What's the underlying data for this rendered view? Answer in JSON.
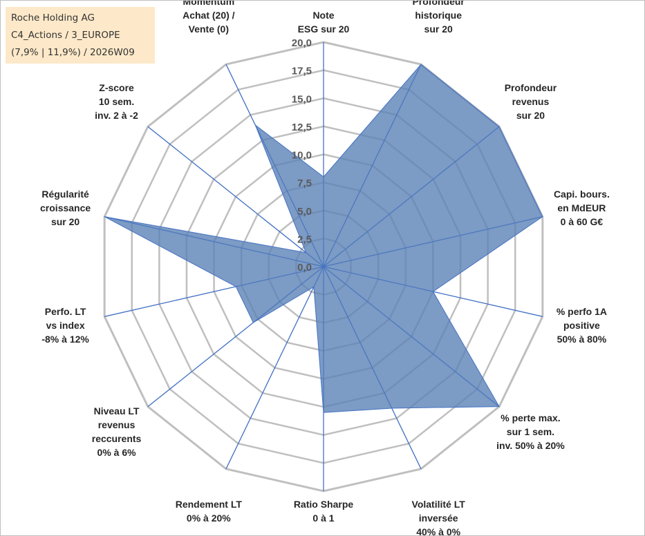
{
  "info_box": {
    "company": "Roche Holding AG",
    "category": "C4_Actions / 3_EUROPE",
    "period": "(7,9% | 11,9%) / 2026W09"
  },
  "colors": {
    "fill": "#5b82b6",
    "stroke": "#4472c4",
    "grid": "#bfbfbf",
    "spoke": "#4472c4",
    "info_bg": "#fde9c9"
  },
  "chart_data": {
    "type": "radar",
    "title": "",
    "range": [
      0,
      20
    ],
    "tick_step": 2.5,
    "tick_labels": [
      "0,0",
      "2,5",
      "5,0",
      "7,5",
      "10,0",
      "12,5",
      "15,0",
      "17,5",
      "20,0"
    ],
    "axes": [
      [
        "Note",
        "ESG sur 20"
      ],
      [
        "Profondeur",
        "historique",
        "sur 20"
      ],
      [
        "Profondeur",
        "revenus",
        "sur 20"
      ],
      [
        "Capi. bours.",
        "en MdEUR",
        "0 à 60 G€"
      ],
      [
        "% perfo 1A",
        "positive",
        "50% à 80%"
      ],
      [
        "% perte max.",
        "sur 1 sem.",
        "inv. 50% à 20%"
      ],
      [
        "Volatilité LT",
        "inversée",
        "40% à 0%"
      ],
      [
        "Ratio Sharpe",
        "0 à 1"
      ],
      [
        "Rendement LT",
        "0% à 20%"
      ],
      [
        "Niveau LT",
        "revenus",
        "reccurents",
        "0% à 6%"
      ],
      [
        "Perfo. LT",
        "vs index",
        "-8% à 12%"
      ],
      [
        "Régularité",
        "croissance",
        "sur 20"
      ],
      [
        "Z-score",
        "10 sem.",
        "inv. 2 à -2"
      ],
      [
        "Momentum",
        "Achat (20) /",
        "Vente (0)"
      ]
    ],
    "series": [
      {
        "values": [
          8.0,
          20.0,
          20.0,
          20.0,
          10.0,
          20.0,
          14.0,
          13.0,
          2.0,
          8.0,
          8.0,
          20.0,
          2.0,
          14.0
        ]
      }
    ]
  }
}
